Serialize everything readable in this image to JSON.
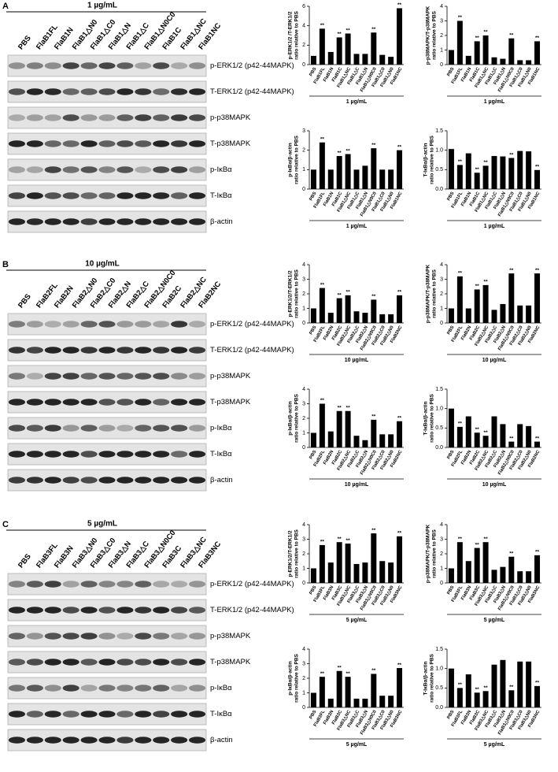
{
  "panels": [
    {
      "label": "A",
      "concentration": "1 µg/mL",
      "lanes": [
        "PBS",
        "FlaB1FL",
        "FlaB1N",
        "FlaB1△N0",
        "FlaB1△C0",
        "FlaB1△N",
        "FlaB1△C",
        "FlaB1△N0C0",
        "FlaB1C",
        "FlaB1△NC",
        "FlaB1NC"
      ],
      "rows": [
        "p-ERK1/2 (p42-44MAPK)",
        "T-ERK1/2 (p42-44MAPK)",
        "p-p38MAPK",
        "T-p38MAPK",
        "p-IκBα",
        "T-IκBα",
        "β-actin"
      ]
    },
    {
      "label": "B",
      "concentration": "10 µg/mL",
      "lanes": [
        "PBS",
        "FlaB2FL",
        "FlaB2N",
        "FlaB2△N0",
        "FlaB2△C0",
        "FlaB2△N",
        "FlaB2△C",
        "FlaB2△N0C0",
        "FlaB2C",
        "FlaB2△NC",
        "FlaB2NC"
      ],
      "rows": [
        "p-ERK1/2 (p42-44MAPK)",
        "T-ERK1/2 (p42-44MAPK)",
        "p-p38MAPK",
        "T-p38MAPK",
        "p-IκBα",
        "T-IκBα",
        "β-actin"
      ]
    },
    {
      "label": "C",
      "concentration": "5 µg/mL",
      "lanes": [
        "PBS",
        "FlaB3FL",
        "FlaB3N",
        "FlaB3△N0",
        "FlaB3△C0",
        "FlaB3△N",
        "FlaB3△C",
        "FlaB3△N0C0",
        "FlaB3C",
        "FlaB3△NC",
        "FlaB3NC"
      ],
      "rows": [
        "p-ERK1/2 (p42-44MAPK)",
        "T-ERK1/2 (p42-44MAPK)",
        "p-p38MAPK",
        "T-p38MAPK",
        "p-IκBα",
        "T-IκBα",
        "β-actin"
      ]
    }
  ],
  "chart_data": [
    {
      "type": "bar",
      "ylabel": [
        "p-ERK1/2 /T-ERK1/2",
        "ratio relative to PBS"
      ],
      "xlabel": "1 µg/mL",
      "color": "#000000",
      "categories": [
        "PBS",
        "FlaB1FL",
        "FlaB1N",
        "FlaB1C",
        "FlaB1△NC",
        "FlaB1△C",
        "FlaB1△N",
        "FlaB1△N0C0",
        "FlaB1△C0",
        "FlaB1△N0",
        "FlaB1NC"
      ],
      "values": [
        0.9,
        3.7,
        1.3,
        2.8,
        3.2,
        1.1,
        1.1,
        3.3,
        1.0,
        0.8,
        5.8
      ],
      "significance": [
        null,
        "**",
        null,
        "**",
        "**",
        null,
        null,
        "**",
        null,
        null,
        "**"
      ],
      "ylim": [
        0,
        6
      ],
      "yticks": [
        0,
        2,
        4,
        6
      ]
    },
    {
      "type": "bar",
      "ylabel": [
        "p-p38MAPK/T-p38MAPK",
        "ratio relative to PBS"
      ],
      "xlabel": "1 µg/mL",
      "color": "#000000",
      "categories": [
        "PBS",
        "FlaB1FL",
        "FlaB1N",
        "FlaB1C",
        "FlaB1△NC",
        "FlaB1△C",
        "FlaB1△N",
        "FlaB1△N0C0",
        "FlaB1△C0",
        "FlaB1△N0",
        "FlaB1NC"
      ],
      "values": [
        1.0,
        3.0,
        0.6,
        1.6,
        2.0,
        0.5,
        0.4,
        1.8,
        0.3,
        0.3,
        1.6
      ],
      "significance": [
        null,
        "**",
        null,
        "**",
        "**",
        null,
        null,
        "**",
        null,
        null,
        "**"
      ],
      "ylim": [
        0,
        4
      ],
      "yticks": [
        0,
        1,
        2,
        3,
        4
      ]
    },
    {
      "type": "bar",
      "ylabel": [
        "p-IκBα/β-actin",
        "ratio relative to PBS"
      ],
      "xlabel": "1 µg/mL",
      "color": "#000000",
      "categories": [
        "PBS",
        "FlaB1FL",
        "FlaB1N",
        "FlaB1C",
        "FlaB1△NC",
        "FlaB1△C",
        "FlaB1△N",
        "FlaB1△N0C0",
        "FlaB1△C0",
        "FlaB1△N0",
        "FlaB1NC"
      ],
      "values": [
        1.0,
        2.4,
        1.0,
        1.7,
        1.8,
        1.0,
        1.2,
        2.1,
        1.0,
        1.0,
        2.0
      ],
      "significance": [
        null,
        "**",
        null,
        "**",
        "**",
        null,
        null,
        "**",
        null,
        null,
        "**"
      ],
      "ylim": [
        0,
        3
      ],
      "yticks": [
        0,
        1,
        2,
        3
      ]
    },
    {
      "type": "bar",
      "ylabel": [
        "T-IκBα/β-actin",
        "ratio relative to PBS"
      ],
      "xlabel": "1 µg/mL",
      "color": "#000000",
      "categories": [
        "PBS",
        "FlaB1FL",
        "FlaB1N",
        "FlaB1C",
        "FlaB1△NC",
        "FlaB1△C",
        "FlaB1△N",
        "FlaB1△N0C0",
        "FlaB1△C0",
        "FlaB1△N0",
        "FlaB1NC"
      ],
      "values": [
        1.03,
        0.62,
        0.92,
        0.42,
        0.6,
        0.85,
        0.84,
        0.8,
        0.98,
        0.97,
        0.49
      ],
      "significance": [
        null,
        "**",
        null,
        "**",
        "**",
        null,
        null,
        "**",
        null,
        null,
        "**"
      ],
      "ylim": [
        0,
        1.5
      ],
      "yticks": [
        {
          "value": 0,
          "label": "0.0"
        },
        0.5,
        {
          "value": 1,
          "label": "1.0"
        },
        1.5
      ]
    },
    {
      "type": "bar",
      "ylabel": [
        "p-ERK1/2/T-ERK1/2",
        "ratio relative to PBS"
      ],
      "xlabel": "10 µg/mL",
      "color": "#000000",
      "categories": [
        "PBS",
        "FlaB2FL",
        "FlaB2N",
        "FlaB2C",
        "FlaB2△NC",
        "FlaB2△C",
        "FlaB2△N",
        "FlaB2△N0C0",
        "FlaB2△C0",
        "FlaB2△N0",
        "FlaB2NC"
      ],
      "values": [
        1.0,
        2.4,
        0.7,
        1.7,
        1.9,
        0.8,
        0.7,
        1.6,
        0.6,
        0.6,
        1.9
      ],
      "significance": [
        null,
        "**",
        null,
        "**",
        "**",
        null,
        null,
        "**",
        null,
        null,
        "**"
      ],
      "ylim": [
        0,
        4
      ],
      "yticks": [
        0,
        1,
        2,
        3,
        4
      ]
    },
    {
      "type": "bar",
      "ylabel": [
        "p-p38MAPK/T-p38MAPK",
        "ratio relative to PBS"
      ],
      "xlabel": "10 µg/mL",
      "color": "#000000",
      "categories": [
        "PBS",
        "FlaB2FL",
        "FlaB2N",
        "FlaB2C",
        "FlaB2△NC",
        "FlaB2△C",
        "FlaB2△N",
        "FlaB2△N0C0",
        "FlaB2△C0",
        "FlaB2△N0",
        "FlaB2NC"
      ],
      "values": [
        1.0,
        3.2,
        1.0,
        2.3,
        2.6,
        0.9,
        1.3,
        3.4,
        1.2,
        1.2,
        3.4
      ],
      "significance": [
        null,
        "**",
        null,
        "**",
        "**",
        null,
        null,
        "**",
        null,
        null,
        "**"
      ],
      "ylim": [
        0,
        4
      ],
      "yticks": [
        0,
        1,
        2,
        3,
        4
      ]
    },
    {
      "type": "bar",
      "ylabel": [
        "p-IκBα/β-actin",
        "ratio relative to PBS"
      ],
      "xlabel": "10 µg/mL",
      "color": "#000000",
      "categories": [
        "PBS",
        "FlaB2FL",
        "FlaB2N",
        "FlaB2C",
        "FlaB2△NC",
        "FlaB2△C",
        "FlaB2△N",
        "FlaB2△N0C0",
        "FlaB2△C0",
        "FlaB2△N0",
        "FlaB2NC"
      ],
      "values": [
        1.0,
        3.0,
        1.1,
        2.5,
        2.5,
        0.8,
        0.5,
        1.9,
        0.9,
        0.9,
        1.8
      ],
      "significance": [
        null,
        "**",
        null,
        "**",
        "**",
        null,
        null,
        "**",
        null,
        null,
        "**"
      ],
      "ylim": [
        0,
        4
      ],
      "yticks": [
        0,
        1,
        2,
        3,
        4
      ]
    },
    {
      "type": "bar",
      "ylabel": [
        "T-IκBα/β-actin",
        "ratio relative to PBS"
      ],
      "xlabel": "10 µg/mL",
      "color": "#000000",
      "categories": [
        "PBS",
        "FlaB2FL",
        "FlaB2N",
        "FlaB2C",
        "FlaB2△NC",
        "FlaB2△C",
        "FlaB2△N",
        "FlaB2△N0C0",
        "FlaB2△C0",
        "FlaB2△N0",
        "FlaB2NC"
      ],
      "values": [
        1.0,
        0.53,
        0.8,
        0.38,
        0.3,
        0.8,
        0.6,
        0.15,
        0.6,
        0.55,
        0.15
      ],
      "significance": [
        null,
        "**",
        null,
        "**",
        "**",
        null,
        null,
        "**",
        null,
        null,
        "**"
      ],
      "ylim": [
        0,
        1.5
      ],
      "yticks": [
        {
          "value": 0,
          "label": "0.0"
        },
        0.5,
        {
          "value": 1,
          "label": "1.0"
        },
        1.5
      ]
    },
    {
      "type": "bar",
      "ylabel": [
        "p-ERK1/2/T-ERK1/2",
        "ratio relative to PBS"
      ],
      "xlabel": "5 µg/mL",
      "color": "#000000",
      "categories": [
        "PBS",
        "FlaB3FL",
        "FlaB3N",
        "FlaB3C",
        "FlaB3△NC",
        "FlaB3△C",
        "FlaB3△N",
        "FlaB3△N0C0",
        "FlaB3△C0",
        "FlaB3△N0",
        "FlaB3NC"
      ],
      "values": [
        1.0,
        2.6,
        1.4,
        2.8,
        2.7,
        1.3,
        1.4,
        3.4,
        1.5,
        1.4,
        3.2
      ],
      "significance": [
        null,
        "**",
        null,
        "**",
        "**",
        null,
        null,
        "**",
        null,
        null,
        "**"
      ],
      "ylim": [
        0,
        4
      ],
      "yticks": [
        0,
        1,
        2,
        3,
        4
      ]
    },
    {
      "type": "bar",
      "ylabel": [
        "p-p38MAPK/T-p38MAPK",
        "ratio relative to PBS"
      ],
      "xlabel": "5 µg/mL",
      "color": "#000000",
      "categories": [
        "PBS",
        "FlaB3FL",
        "FlaB3N",
        "FlaB3C",
        "FlaB3△NC",
        "FlaB3△C",
        "FlaB3△N",
        "FlaB3△N0C0",
        "FlaB3△C0",
        "FlaB3△N0",
        "FlaB3NC"
      ],
      "values": [
        1.0,
        2.8,
        1.5,
        2.4,
        2.8,
        0.9,
        1.1,
        1.8,
        0.8,
        0.8,
        1.9
      ],
      "significance": [
        null,
        "**",
        null,
        "**",
        "**",
        null,
        null,
        "**",
        null,
        null,
        "**"
      ],
      "ylim": [
        0,
        4
      ],
      "yticks": [
        0,
        1,
        2,
        3,
        4
      ]
    },
    {
      "type": "bar",
      "ylabel": [
        "p-IκBα/β-actin",
        "ratio relative to PBS"
      ],
      "xlabel": "5 µg/mL",
      "color": "#000000",
      "categories": [
        "PBS",
        "FlaB3FL",
        "FlaB3N",
        "FlaB3C",
        "FlaB3△NC",
        "FlaB3△C",
        "FlaB3△N",
        "FlaB3△N0C0",
        "FlaB3△C0",
        "FlaB3△N0",
        "FlaB3NC"
      ],
      "values": [
        1.0,
        2.1,
        0.6,
        2.5,
        2.1,
        0.6,
        0.6,
        2.3,
        0.8,
        0.8,
        2.7
      ],
      "significance": [
        null,
        "**",
        null,
        "**",
        "**",
        null,
        null,
        "**",
        null,
        null,
        "**"
      ],
      "ylim": [
        0,
        4
      ],
      "yticks": [
        0,
        1,
        2,
        3,
        4
      ]
    },
    {
      "type": "bar",
      "ylabel": [
        "T-IκBα/β-actin",
        "ratio relative to PBS"
      ],
      "xlabel": "5 µg/mL",
      "color": "#000000",
      "categories": [
        "PBS",
        "FlaB3FL",
        "FlaB3N",
        "FlaB3C",
        "FlaB3△NC",
        "FlaB3△C",
        "FlaB3△N",
        "FlaB3△N0C0",
        "FlaB3△C0",
        "FlaB3△N0",
        "FlaB3NC"
      ],
      "values": [
        1.0,
        0.5,
        0.85,
        0.38,
        0.42,
        1.1,
        1.22,
        0.44,
        1.18,
        1.18,
        0.55
      ],
      "significance": [
        null,
        "**",
        null,
        "**",
        "**",
        null,
        null,
        "**",
        null,
        null,
        "**"
      ],
      "ylim": [
        0,
        1.5
      ],
      "yticks": [
        {
          "value": 0,
          "label": "0.0"
        },
        0.5,
        {
          "value": 1,
          "label": "1.0"
        },
        1.5
      ]
    }
  ]
}
